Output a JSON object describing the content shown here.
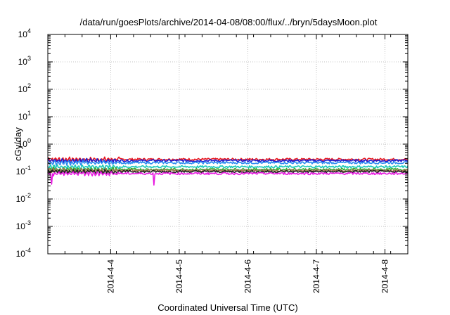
{
  "chart_data": {
    "type": "line",
    "title": "/data/run/goesPlots/archive/2014-04-08/08:00/flux/../bryn/5daysMoon.plot",
    "xlabel": "Coordinated Universal Time (UTC)",
    "ylabel": "cGy/day",
    "y_scale": "log",
    "ylim": [
      0.0001,
      10000
    ],
    "xlim": [
      "2014-04-03T02:00",
      "2014-04-08T08:00"
    ],
    "y_ticks": [
      {
        "base": "10",
        "exp": "-4",
        "value": 0.0001
      },
      {
        "base": "10",
        "exp": "-3",
        "value": 0.001
      },
      {
        "base": "10",
        "exp": "-2",
        "value": 0.01
      },
      {
        "base": "10",
        "exp": "-1",
        "value": 0.1
      },
      {
        "base": "10",
        "exp": "0",
        "value": 1
      },
      {
        "base": "10",
        "exp": "1",
        "value": 10
      },
      {
        "base": "10",
        "exp": "2",
        "value": 100
      },
      {
        "base": "10",
        "exp": "3",
        "value": 1000
      },
      {
        "base": "10",
        "exp": "4",
        "value": 10000
      }
    ],
    "x_ticks": [
      {
        "label": "2014-4-4",
        "date": "2014-04-04T00:00"
      },
      {
        "label": "2014-4-5",
        "date": "2014-04-05T00:00"
      },
      {
        "label": "2014-4-6",
        "date": "2014-04-06T00:00"
      },
      {
        "label": "2014-4-7",
        "date": "2014-04-07T00:00"
      },
      {
        "label": "2014-4-8",
        "date": "2014-04-08T00:00"
      }
    ],
    "grid": true,
    "series": [
      {
        "color": "#e8141c",
        "level": 0.28
      },
      {
        "color": "#1c1cd0",
        "level": 0.25
      },
      {
        "color": "#2c8cf0",
        "level": 0.21
      },
      {
        "color": "#18c8b8",
        "level": 0.15
      },
      {
        "color": "#30b030",
        "level": 0.12
      },
      {
        "color": "#a07850",
        "level": 0.11
      },
      {
        "color": "#202020",
        "level": 0.1
      },
      {
        "color": "#e818e0",
        "level": 0.085
      }
    ]
  }
}
